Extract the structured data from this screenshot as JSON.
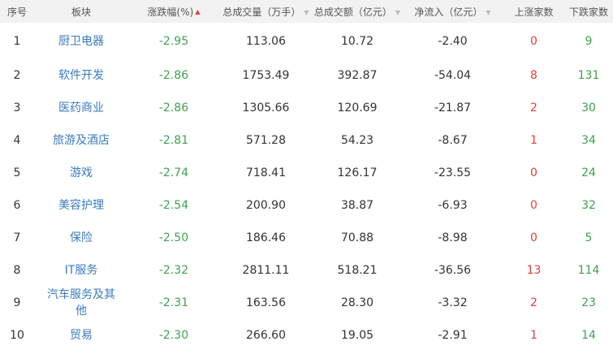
{
  "table": {
    "columns": [
      "序号",
      "板块",
      "涨跌幅(%)",
      "总成交量（万手）",
      "总成交额（亿元）",
      "净流入（亿元）",
      "上涨家数",
      "下跌家数"
    ],
    "rows": [
      [
        "1",
        "厨卫电器",
        "-2.95",
        "113.06",
        "10.72",
        "-2.40",
        "0",
        "9"
      ],
      [
        "2",
        "软件开发",
        "-2.86",
        "1753.49",
        "392.87",
        "-54.04",
        "8",
        "131"
      ],
      [
        "3",
        "医药商业",
        "-2.86",
        "1305.66",
        "120.69",
        "-21.87",
        "2",
        "30"
      ],
      [
        "4",
        "旅游及酒店",
        "-2.81",
        "571.28",
        "54.23",
        "-8.67",
        "1",
        "34"
      ],
      [
        "5",
        "游戏",
        "-2.74",
        "718.41",
        "126.17",
        "-23.55",
        "0",
        "24"
      ],
      [
        "6",
        "美容护理",
        "-2.54",
        "200.90",
        "38.87",
        "-6.93",
        "0",
        "32"
      ],
      [
        "7",
        "保险",
        "-2.50",
        "186.46",
        "70.88",
        "-8.98",
        "0",
        "5"
      ],
      [
        "8",
        "IT服务",
        "-2.32",
        "2811.11",
        "518.21",
        "-36.56",
        "13",
        "114"
      ],
      [
        "9",
        "汽车服务及其他",
        "-2.31",
        "163.56",
        "28.30",
        "-3.32",
        "2",
        "23"
      ],
      [
        "10",
        "贸易",
        "-2.30",
        "266.60",
        "19.05",
        "-2.91",
        "1",
        "14"
      ]
    ]
  }
}
